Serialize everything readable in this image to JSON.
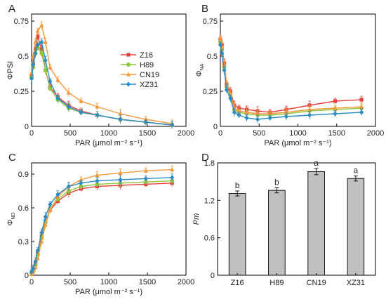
{
  "colors": {
    "Z16": "#e8413c",
    "H89": "#8dc63f",
    "CN19": "#f59a3c",
    "XZ31": "#2b8cc4",
    "bar": "#c0c0c0",
    "axis": "#000000",
    "text": "#222222"
  },
  "chart_data": [
    {
      "panel": "A",
      "type": "line",
      "ylabel": "ΦPSI",
      "xlabel": "PAR (μmol m⁻² s⁻¹)",
      "xlim": [
        0,
        2000
      ],
      "ylim": [
        0,
        0.8
      ],
      "xticks": [
        "0",
        "500",
        "1000",
        "1500",
        "2000"
      ],
      "yticks": [
        "0",
        "0.25",
        "0.5",
        "0.75"
      ],
      "legend": [
        "Z16",
        "H89",
        "CN19",
        "XZ31"
      ],
      "legend_position": "inside-right",
      "x": [
        0,
        20,
        50,
        80,
        130,
        180,
        240,
        340,
        480,
        640,
        850,
        1150,
        1480,
        1820
      ],
      "series": [
        {
          "name": "Z16",
          "values": [
            0.36,
            0.45,
            0.55,
            0.64,
            0.55,
            0.4,
            0.28,
            0.21,
            0.15,
            0.11,
            0.08,
            0.05,
            0.03,
            0.01
          ]
        },
        {
          "name": "H89",
          "values": [
            0.35,
            0.42,
            0.52,
            0.56,
            0.52,
            0.4,
            0.27,
            0.19,
            0.13,
            0.1,
            0.08,
            0.05,
            0.03,
            0.01
          ]
        },
        {
          "name": "CN19",
          "values": [
            0.38,
            0.5,
            0.6,
            0.68,
            0.72,
            0.6,
            0.42,
            0.33,
            0.24,
            0.18,
            0.14,
            0.09,
            0.05,
            0.02
          ]
        },
        {
          "name": "XZ31",
          "values": [
            0.34,
            0.44,
            0.52,
            0.58,
            0.6,
            0.47,
            0.32,
            0.2,
            0.14,
            0.1,
            0.08,
            0.05,
            0.03,
            0.01
          ]
        }
      ]
    },
    {
      "panel": "B",
      "type": "line",
      "ylabel": "ΦNA",
      "xlabel": "PAR (μmol m⁻² s⁻¹)",
      "xlim": [
        0,
        2000
      ],
      "ylim": [
        0,
        0.8
      ],
      "xticks": [
        "0",
        "500",
        "1000",
        "1500",
        "2000"
      ],
      "yticks": [
        "0",
        "0.25",
        "0.5",
        "0.75"
      ],
      "x": [
        0,
        20,
        50,
        80,
        130,
        180,
        240,
        340,
        480,
        640,
        850,
        1150,
        1480,
        1820
      ],
      "series": [
        {
          "name": "Z16",
          "values": [
            0.62,
            0.58,
            0.45,
            0.3,
            0.25,
            0.15,
            0.13,
            0.12,
            0.11,
            0.1,
            0.12,
            0.15,
            0.18,
            0.19
          ]
        },
        {
          "name": "H89",
          "values": [
            0.6,
            0.55,
            0.42,
            0.28,
            0.22,
            0.12,
            0.1,
            0.09,
            0.08,
            0.08,
            0.09,
            0.11,
            0.12,
            0.13
          ]
        },
        {
          "name": "CN19",
          "values": [
            0.63,
            0.57,
            0.44,
            0.29,
            0.23,
            0.13,
            0.11,
            0.1,
            0.09,
            0.09,
            0.1,
            0.12,
            0.13,
            0.14
          ]
        },
        {
          "name": "XZ31",
          "values": [
            0.58,
            0.52,
            0.4,
            0.26,
            0.2,
            0.1,
            0.08,
            0.06,
            0.05,
            0.06,
            0.07,
            0.08,
            0.09,
            0.1
          ]
        }
      ]
    },
    {
      "panel": "C",
      "type": "line",
      "ylabel": "ΦND",
      "xlabel": "PAR (μmol m⁻² s⁻¹)",
      "xlim": [
        0,
        2000
      ],
      "ylim": [
        0,
        1.0
      ],
      "xticks": [
        "0",
        "500",
        "1000",
        "1500",
        "2000"
      ],
      "yticks": [
        "0",
        "0.3",
        "0.6",
        "0.9"
      ],
      "x": [
        0,
        20,
        50,
        80,
        130,
        180,
        240,
        340,
        480,
        640,
        850,
        1150,
        1480,
        1820
      ],
      "series": [
        {
          "name": "Z16",
          "values": [
            0.02,
            0.05,
            0.1,
            0.2,
            0.35,
            0.48,
            0.58,
            0.66,
            0.73,
            0.77,
            0.79,
            0.8,
            0.81,
            0.82
          ]
        },
        {
          "name": "H89",
          "values": [
            0.02,
            0.04,
            0.09,
            0.18,
            0.33,
            0.47,
            0.59,
            0.68,
            0.75,
            0.79,
            0.81,
            0.82,
            0.83,
            0.84
          ]
        },
        {
          "name": "CN19",
          "values": [
            0.01,
            0.03,
            0.07,
            0.15,
            0.3,
            0.45,
            0.58,
            0.7,
            0.79,
            0.85,
            0.89,
            0.91,
            0.93,
            0.94
          ]
        },
        {
          "name": "XZ31",
          "values": [
            0.03,
            0.06,
            0.12,
            0.22,
            0.38,
            0.52,
            0.63,
            0.72,
            0.79,
            0.82,
            0.84,
            0.85,
            0.86,
            0.87
          ]
        }
      ]
    },
    {
      "panel": "D",
      "type": "bar",
      "ylabel": "Pm",
      "ylim": [
        0,
        1.8
      ],
      "yticks": [
        "0",
        "0.6",
        "1.2",
        "1.8"
      ],
      "categories": [
        "Z16",
        "H89",
        "CN19",
        "XZ31"
      ],
      "values": [
        1.31,
        1.36,
        1.66,
        1.55
      ],
      "errors": [
        0.04,
        0.04,
        0.05,
        0.04
      ],
      "annotations": [
        "b",
        "b",
        "a",
        "a"
      ]
    }
  ]
}
